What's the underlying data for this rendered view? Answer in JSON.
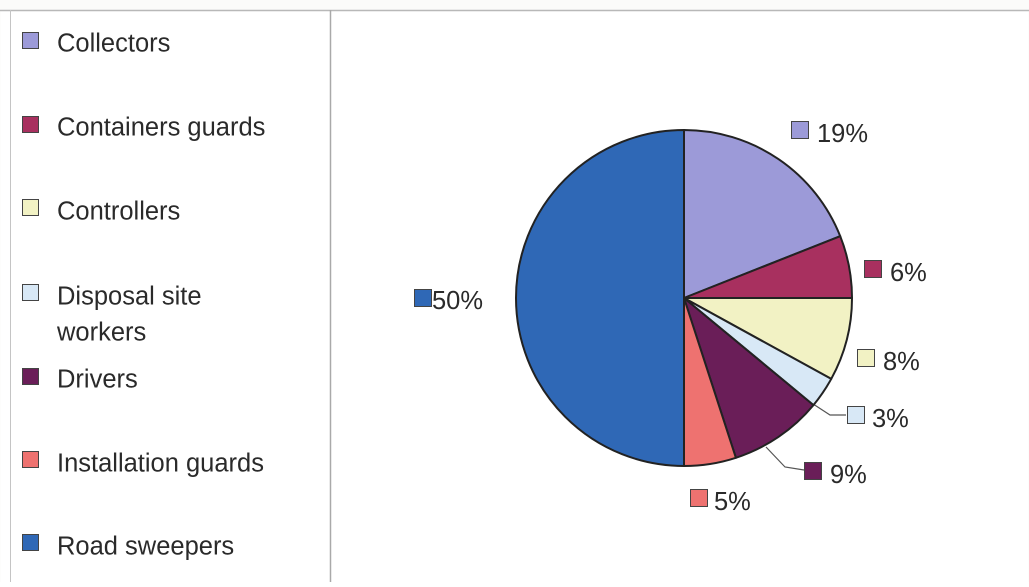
{
  "chart_data": {
    "type": "pie",
    "categories": [
      "Collectors",
      "Containers guards",
      "Controllers",
      "Disposal site workers",
      "Drivers",
      "Installation guards",
      "Road sweepers"
    ],
    "values": [
      19,
      6,
      8,
      3,
      9,
      5,
      50
    ],
    "data_labels": [
      "19%",
      "6%",
      "8%",
      "3%",
      "9%",
      "5%",
      "50%"
    ],
    "colors": [
      "#9c9ad8",
      "#a8305f",
      "#f2f2c4",
      "#d8e8f6",
      "#6a1e58",
      "#ee7270",
      "#2f68b6"
    ],
    "legend": {
      "position": "left",
      "entries": [
        [
          "Collectors"
        ],
        [
          "Containers guards"
        ],
        [
          "Controllers"
        ],
        [
          "Disposal site",
          "workers"
        ],
        [
          "Drivers"
        ],
        [
          "Installation guards"
        ],
        [
          "Road sweepers"
        ]
      ]
    },
    "title": "",
    "start_angle": "12 o'clock",
    "direction": "clockwise"
  }
}
